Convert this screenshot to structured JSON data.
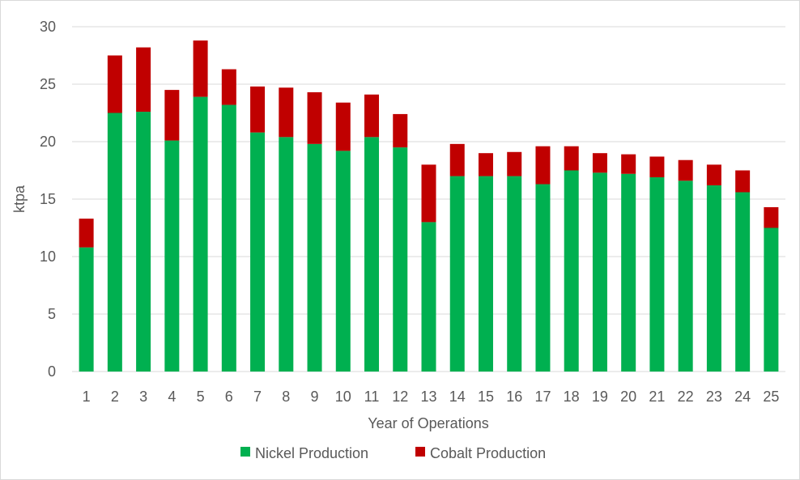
{
  "chart_data": {
    "type": "bar",
    "stacked": true,
    "title": "",
    "xlabel": "Year of Operations",
    "ylabel": "ktpa",
    "ylim": [
      0,
      30
    ],
    "yticks": [
      0,
      5,
      10,
      15,
      20,
      25,
      30
    ],
    "grid": true,
    "legend_position": "bottom",
    "categories": [
      "1",
      "2",
      "3",
      "4",
      "5",
      "6",
      "7",
      "8",
      "9",
      "10",
      "11",
      "12",
      "13",
      "14",
      "15",
      "16",
      "17",
      "18",
      "19",
      "20",
      "21",
      "22",
      "23",
      "24",
      "25"
    ],
    "series": [
      {
        "name": "Nickel Production",
        "color": "#00B050",
        "values": [
          10.8,
          22.5,
          22.6,
          20.1,
          23.9,
          23.2,
          20.8,
          20.4,
          19.8,
          19.2,
          20.4,
          19.5,
          13.0,
          17.0,
          17.0,
          17.0,
          16.3,
          17.5,
          17.3,
          17.2,
          16.9,
          16.6,
          16.2,
          15.6,
          12.5
        ]
      },
      {
        "name": "Cobalt Production",
        "color": "#C00000",
        "values": [
          2.5,
          5.0,
          5.6,
          4.4,
          4.9,
          3.1,
          4.0,
          4.3,
          4.5,
          4.2,
          3.7,
          2.9,
          5.0,
          2.8,
          2.0,
          2.1,
          3.3,
          2.1,
          1.7,
          1.7,
          1.8,
          1.8,
          1.8,
          1.9,
          1.8
        ]
      }
    ]
  }
}
